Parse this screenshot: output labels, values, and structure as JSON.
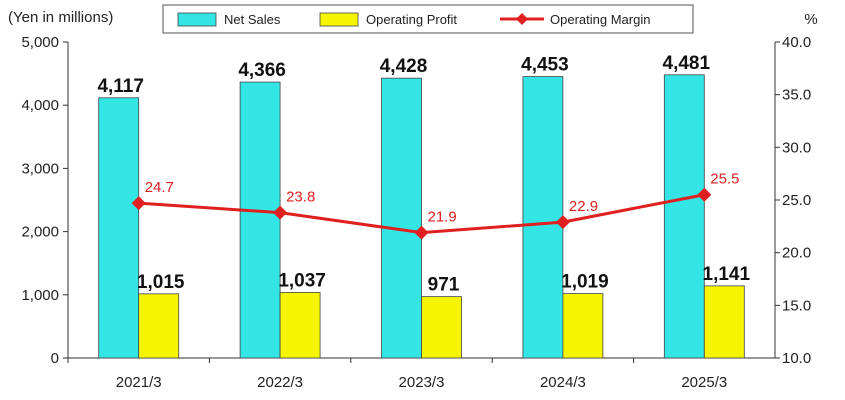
{
  "chart_data": {
    "type": "bar",
    "categories": [
      "2021/3",
      "2022/3",
      "2023/3",
      "2024/3",
      "2025/3"
    ],
    "series": [
      {
        "name": "Net Sales",
        "type": "bar",
        "axis": "left",
        "values": [
          4117,
          4366,
          4428,
          4453,
          4481
        ],
        "labels": [
          "4,117",
          "4,366",
          "4,428",
          "4,453",
          "4,481"
        ],
        "color": "#33e5e5"
      },
      {
        "name": "Operating Profit",
        "type": "bar",
        "axis": "left",
        "values": [
          1015,
          1037,
          971,
          1019,
          1141
        ],
        "labels": [
          "1,015",
          "1,037",
          "971",
          "1,019",
          "1,141"
        ],
        "color": "#f5f500"
      },
      {
        "name": "Operating Margin",
        "type": "line",
        "axis": "right",
        "values": [
          24.7,
          23.8,
          21.9,
          22.9,
          25.5
        ],
        "labels": [
          "24.7",
          "23.8",
          "21.9",
          "22.9",
          "25.5"
        ],
        "color": "#e02020"
      }
    ],
    "ylabel_left": "(Yen in millions)",
    "ylabel_right": "%",
    "ylim_left": [
      0,
      5000
    ],
    "ylim_right": [
      10,
      40
    ],
    "yticks_left": [
      "0",
      "1,000",
      "2,000",
      "3,000",
      "4,000",
      "5,000"
    ],
    "yticks_right": [
      "10.0",
      "15.0",
      "20.0",
      "25.0",
      "30.0",
      "35.0",
      "40.0"
    ],
    "grid": false,
    "legend_position": "top"
  }
}
